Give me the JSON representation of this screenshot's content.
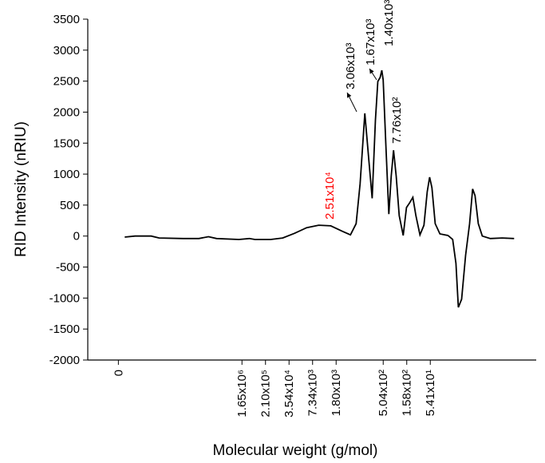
{
  "chart_data": {
    "type": "line",
    "xlabel": "Molecular weight (g/mol)",
    "ylabel": "RID Intensity (nRIU)",
    "xlim": [
      -1.3,
      17.75
    ],
    "xticks": [
      0,
      {
        "value": 5.25,
        "label": "1.65x10⁶"
      },
      {
        "value": 6.25,
        "label": "2.10x10⁵"
      },
      {
        "value": 7.25,
        "label": "3.54x10⁴"
      },
      {
        "value": 8.25,
        "label": "7.34x10³"
      },
      {
        "value": 9.25,
        "label": "1.80x10³"
      },
      {
        "value": 11.25,
        "label": "5.04x10²"
      },
      {
        "value": 12.25,
        "label": "1.58x10²"
      },
      {
        "value": 13.25,
        "label": "5.41x10¹"
      }
    ],
    "ylim": [
      -2000,
      3500
    ],
    "yticks": [
      -2000,
      -1500,
      -1000,
      -500,
      0,
      500,
      1000,
      1500,
      2000,
      2500,
      3000,
      3500
    ],
    "series": [
      {
        "color": "#000000",
        "x": [
          0.27,
          0.71,
          1.39,
          1.73,
          2.75,
          3.42,
          3.83,
          4.17,
          5.12,
          5.56,
          5.8,
          6.47,
          6.98,
          7.49,
          8.0,
          8.51,
          9.02,
          9.53,
          9.86,
          10.1,
          10.27,
          10.47,
          10.64,
          10.78,
          10.92,
          11.02,
          11.12,
          11.19,
          11.25,
          11.36,
          11.49,
          11.59,
          11.69,
          11.8,
          11.93,
          12.1,
          12.24,
          12.37,
          12.51,
          12.64,
          12.81,
          12.98,
          13.12,
          13.22,
          13.32,
          13.46,
          13.66,
          14.0,
          14.2,
          14.34,
          14.44,
          14.58,
          14.75,
          14.92,
          15.05,
          15.15,
          15.29,
          15.46,
          15.8,
          16.3,
          16.81
        ],
        "values": [
          -17,
          0,
          0,
          -30,
          -40,
          -40,
          -10,
          -40,
          -55,
          -40,
          -55,
          -55,
          -30,
          45,
          135,
          175,
          165,
          75,
          20,
          200,
          845,
          1980,
          1230,
          610,
          1875,
          2495,
          2560,
          2675,
          2520,
          1490,
          355,
          970,
          1385,
          970,
          330,
          10,
          460,
          535,
          625,
          330,
          20,
          175,
          715,
          950,
          780,
          200,
          35,
          10,
          -55,
          -440,
          -1150,
          -1020,
          -310,
          200,
          760,
          655,
          200,
          0,
          -40,
          -30,
          -40
        ]
      }
    ],
    "annotations": [
      {
        "text": "3.06x10³",
        "color": "#000000"
      },
      {
        "text": "1.67x10³",
        "color": "#000000"
      },
      {
        "text": "1.40x10³",
        "color": "#000000"
      },
      {
        "text": "7.76x10²",
        "color": "#000000"
      },
      {
        "text": "2.51x10⁴",
        "color": "#ff0000"
      }
    ]
  }
}
